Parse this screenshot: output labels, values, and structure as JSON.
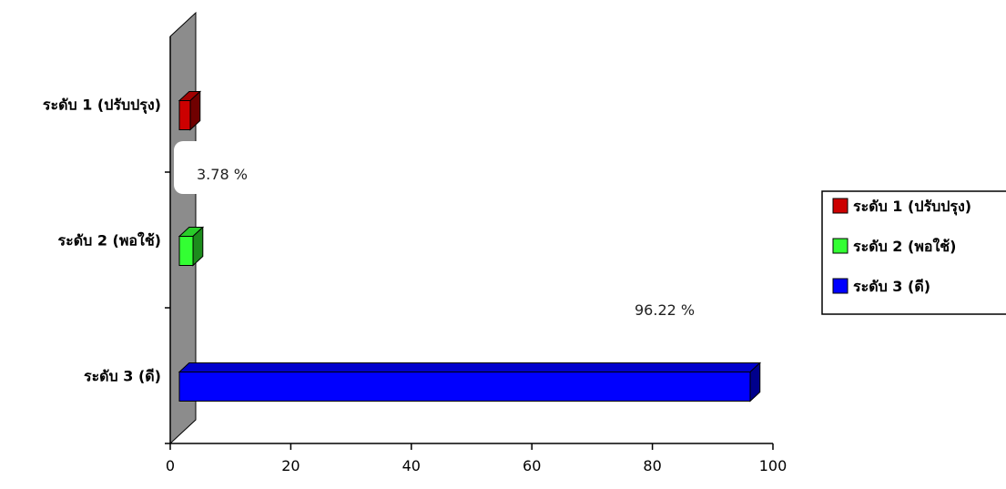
{
  "chart_data": {
    "type": "bar",
    "orientation": "horizontal",
    "categories": [
      "ระดับ 1 (ปรับปรุง)",
      "ระดับ 2 (พอใช้)",
      "ระดับ 3 (ดี)"
    ],
    "values": [
      1.5,
      3.78,
      96.22
    ],
    "data_labels": [
      "",
      "3.78 %",
      "96.22 %"
    ],
    "colors": [
      "#cc0000",
      "#33ff33",
      "#0000ff"
    ],
    "xlim": [
      0,
      100
    ],
    "x_ticks": [
      0,
      20,
      40,
      60,
      80,
      100
    ],
    "title": "",
    "xlabel": "",
    "ylabel": "",
    "grid": false,
    "style": "3d",
    "legend": {
      "position": "right",
      "entries": [
        "ระดับ 1 (ปรับปรุง)",
        "ระดับ 2 (พอใช้)",
        "ระดับ 3 (ดี)"
      ]
    }
  }
}
